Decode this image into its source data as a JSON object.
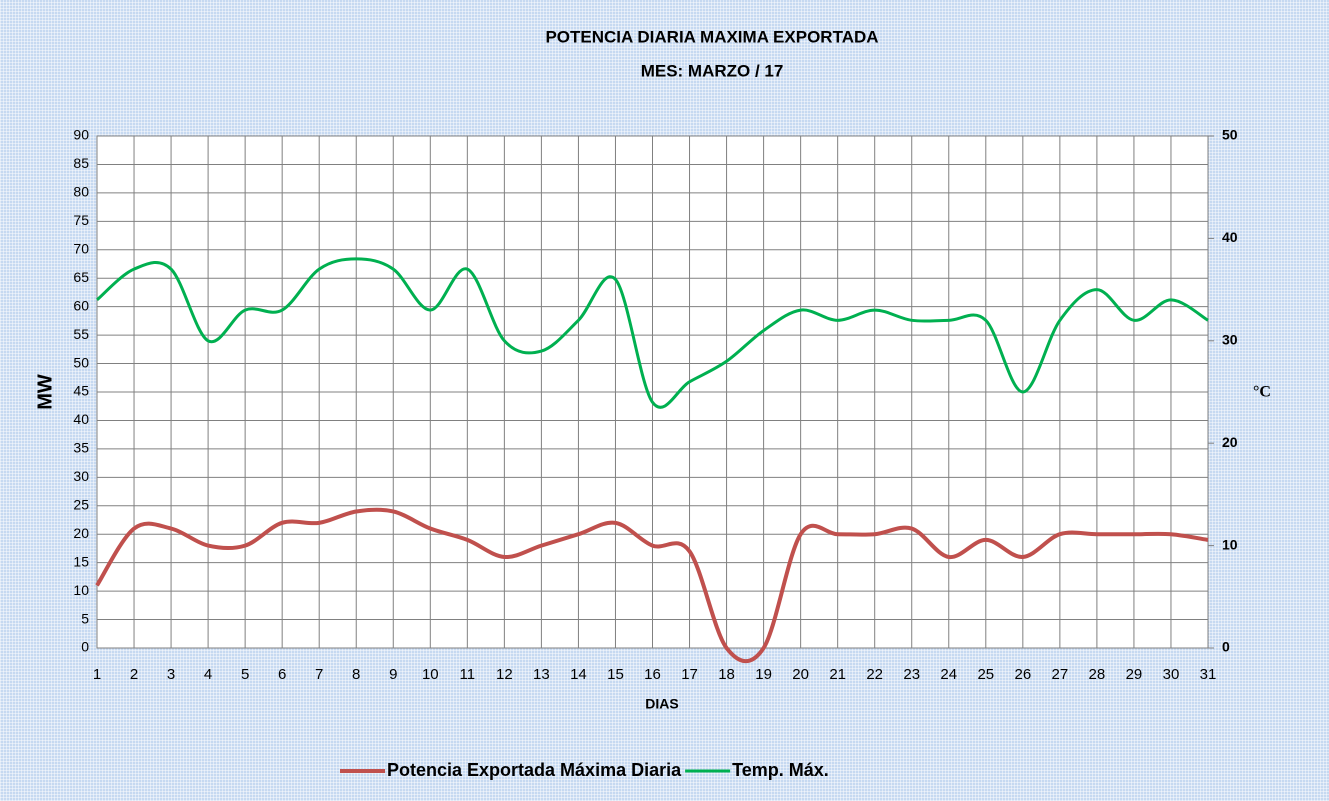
{
  "chart_data": {
    "type": "line",
    "title": "POTENCIA DIARIA MAXIMA EXPORTADA",
    "subtitle": "MES:  MARZO  / 17",
    "x_label": "DIAS",
    "y_label": "MW",
    "y2_label": "°C",
    "x": [
      1,
      2,
      3,
      4,
      5,
      6,
      7,
      8,
      9,
      10,
      11,
      12,
      13,
      14,
      15,
      16,
      17,
      18,
      19,
      20,
      21,
      22,
      23,
      24,
      25,
      26,
      27,
      28,
      29,
      30,
      31
    ],
    "xlim": [
      1,
      31
    ],
    "xticks": [
      1,
      2,
      3,
      4,
      5,
      6,
      7,
      8,
      9,
      10,
      11,
      12,
      13,
      14,
      15,
      16,
      17,
      18,
      19,
      20,
      21,
      22,
      23,
      24,
      25,
      26,
      27,
      28,
      29,
      30,
      31
    ],
    "ylim": [
      0,
      90
    ],
    "yticks": [
      0,
      5,
      10,
      15,
      20,
      25,
      30,
      35,
      40,
      45,
      50,
      55,
      60,
      65,
      70,
      75,
      80,
      85,
      90
    ],
    "y2lim": [
      0,
      50
    ],
    "y2ticks": [
      0,
      10,
      20,
      30,
      40,
      50
    ],
    "grid": true,
    "legend": "bottom",
    "series": [
      {
        "name": "Potencia Exportada Máxima Diaria",
        "color": "#c0504d",
        "values": [
          11,
          21,
          21,
          18,
          18,
          22,
          22,
          24,
          24,
          21,
          19,
          16,
          18,
          20,
          22,
          18,
          17,
          0,
          0,
          20,
          20,
          20,
          21,
          16,
          19,
          16,
          20,
          20,
          20,
          20,
          19
        ]
      },
      {
        "name": "Temp. Máx.",
        "color": "#00b050",
        "axis": "y2",
        "values": [
          34,
          37,
          37,
          30,
          33,
          33,
          37,
          38,
          37,
          33,
          37,
          30,
          29,
          32,
          36,
          24,
          26,
          28,
          31,
          33,
          32,
          33,
          32,
          32,
          32,
          25,
          32,
          35,
          32,
          34,
          32
        ]
      }
    ]
  }
}
